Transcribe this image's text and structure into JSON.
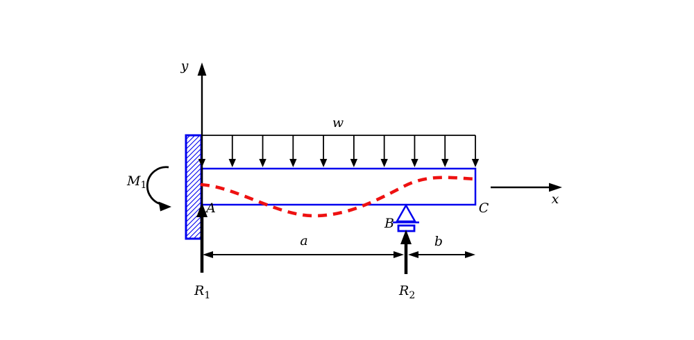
{
  "diagram": {
    "labels": {
      "y_axis": "y",
      "x_axis": "x",
      "load": "w",
      "moment_base": "M",
      "moment_sub": "1",
      "point_a": "A",
      "point_b": "B",
      "point_c": "C",
      "span_a": "a",
      "span_b": "b",
      "reaction1_base": "R",
      "reaction1_sub": "1",
      "reaction2_base": "R",
      "reaction2_sub": "2"
    },
    "colors": {
      "ink": "#000000",
      "member": "#0000ee",
      "deflection": "#ee1111",
      "background": "#ffffff"
    },
    "distributed_load": {
      "arrow_count": 10
    }
  }
}
